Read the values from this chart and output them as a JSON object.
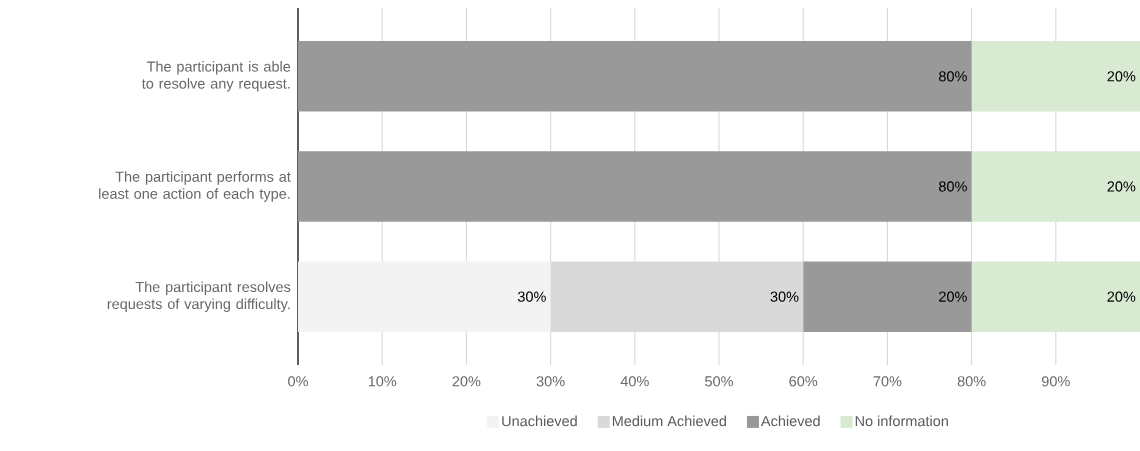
{
  "chart_data": {
    "type": "bar",
    "orientation": "horizontal",
    "stacked": true,
    "categories": [
      "The participant is able to resolve any request.",
      "The participant performs at least one action of each type.",
      "The participant resolves requests of varying difficulty."
    ],
    "series": [
      {
        "name": "Unachieved",
        "color": "#f3f3f3",
        "values": [
          0,
          0,
          30
        ],
        "value_labels": [
          null,
          null,
          "30%"
        ]
      },
      {
        "name": "Medium Achieved",
        "color": "#d9d9d9",
        "values": [
          0,
          0,
          30
        ],
        "value_labels": [
          null,
          null,
          "30%"
        ]
      },
      {
        "name": "Achieved",
        "color": "#999999",
        "values": [
          80,
          80,
          20
        ],
        "value_labels": [
          "80%",
          "80%",
          "20%"
        ]
      },
      {
        "name": "No information",
        "color": "#d9ead3",
        "values": [
          20,
          20,
          20
        ],
        "value_labels": [
          "20%",
          "20%",
          "20%"
        ]
      }
    ],
    "xlim": [
      0,
      100
    ],
    "xticks": [
      {
        "value": 0,
        "label": "0%"
      },
      {
        "value": 10,
        "label": "10%"
      },
      {
        "value": 20,
        "label": "20%"
      },
      {
        "value": 30,
        "label": "30%"
      },
      {
        "value": 40,
        "label": "40%"
      },
      {
        "value": 50,
        "label": "50%"
      },
      {
        "value": 60,
        "label": "60%"
      },
      {
        "value": 70,
        "label": "70%"
      },
      {
        "value": 80,
        "label": "80%"
      },
      {
        "value": 90,
        "label": "90%"
      }
    ],
    "grid": "x",
    "legend": "bottom"
  }
}
